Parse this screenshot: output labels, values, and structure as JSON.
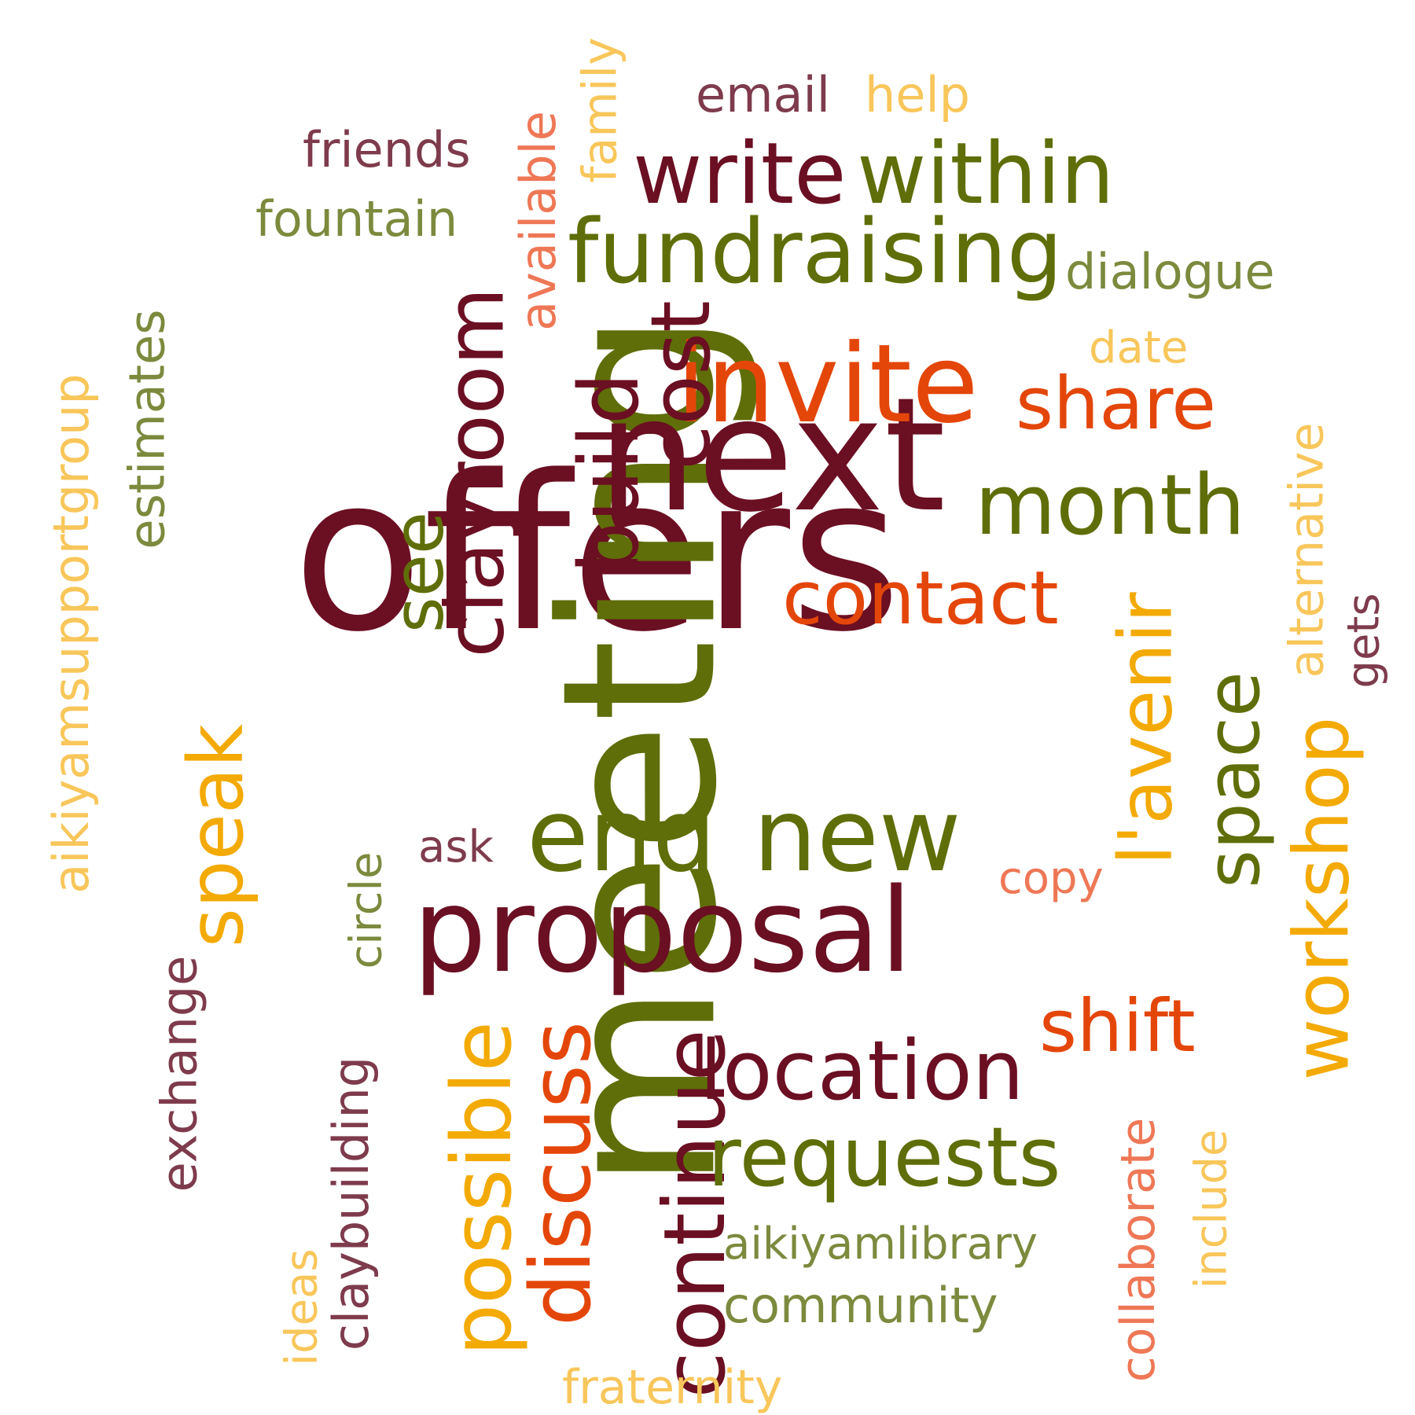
{
  "palette": {
    "maroon": "#6b0f22",
    "olive": "#5f6e08",
    "orange_red": "#e4460a",
    "amber": "#f3aa05",
    "light_amber": "#f8c65a",
    "salmon": "#ee7756",
    "mauve": "#7e3b4c",
    "sage": "#7b8a3d"
  },
  "words": [
    {
      "text": "offers",
      "weight": 1.0,
      "color": "maroon"
    },
    {
      "text": "meeting",
      "weight": 0.98,
      "color": "olive"
    },
    {
      "text": "next",
      "weight": 0.74,
      "color": "maroon"
    },
    {
      "text": "proposal",
      "weight": 0.55,
      "color": "maroon"
    },
    {
      "text": "invite",
      "weight": 0.52,
      "color": "orange_red"
    },
    {
      "text": "fundraising",
      "weight": 0.46,
      "color": "olive"
    },
    {
      "text": "new",
      "weight": 0.45,
      "color": "olive"
    },
    {
      "text": "end",
      "weight": 0.45,
      "color": "olive"
    },
    {
      "text": "within",
      "weight": 0.44,
      "color": "olive"
    },
    {
      "text": "write",
      "weight": 0.44,
      "color": "maroon"
    },
    {
      "text": "clayroom",
      "weight": 0.44,
      "color": "maroon"
    },
    {
      "text": "month",
      "weight": 0.42,
      "color": "olive"
    },
    {
      "text": "discuss",
      "weight": 0.42,
      "color": "orange_red"
    },
    {
      "text": "possible",
      "weight": 0.42,
      "color": "amber"
    },
    {
      "text": "build",
      "weight": 0.42,
      "color": "maroon"
    },
    {
      "text": "cost",
      "weight": 0.42,
      "color": "maroon"
    },
    {
      "text": "continue",
      "weight": 0.42,
      "color": "maroon"
    },
    {
      "text": "location",
      "weight": 0.4,
      "color": "maroon"
    },
    {
      "text": "requests",
      "weight": 0.4,
      "color": "olive"
    },
    {
      "text": "contact",
      "weight": 0.38,
      "color": "orange_red"
    },
    {
      "text": "workshop",
      "weight": 0.38,
      "color": "amber"
    },
    {
      "text": "speak",
      "weight": 0.38,
      "color": "amber"
    },
    {
      "text": "share",
      "weight": 0.36,
      "color": "orange_red"
    },
    {
      "text": "shift",
      "weight": 0.36,
      "color": "orange_red"
    },
    {
      "text": "space",
      "weight": 0.36,
      "color": "olive"
    },
    {
      "text": "l'avenir",
      "weight": 0.36,
      "color": "amber"
    },
    {
      "text": "see",
      "weight": 0.34,
      "color": "olive"
    },
    {
      "text": "dialogue",
      "weight": 0.24,
      "color": "sage"
    },
    {
      "text": "friends",
      "weight": 0.24,
      "color": "mauve"
    },
    {
      "text": "fountain",
      "weight": 0.24,
      "color": "sage"
    },
    {
      "text": "email",
      "weight": 0.24,
      "color": "mauve"
    },
    {
      "text": "help",
      "weight": 0.24,
      "color": "light_amber"
    },
    {
      "text": "available",
      "weight": 0.24,
      "color": "salmon"
    },
    {
      "text": "family",
      "weight": 0.24,
      "color": "light_amber"
    },
    {
      "text": "estimates",
      "weight": 0.24,
      "color": "sage"
    },
    {
      "text": "aikiyamsupportgroup",
      "weight": 0.24,
      "color": "light_amber"
    },
    {
      "text": "date",
      "weight": 0.22,
      "color": "light_amber"
    },
    {
      "text": "alternative",
      "weight": 0.24,
      "color": "light_amber"
    },
    {
      "text": "gets",
      "weight": 0.22,
      "color": "mauve"
    },
    {
      "text": "ask",
      "weight": 0.22,
      "color": "mauve"
    },
    {
      "text": "copy",
      "weight": 0.22,
      "color": "salmon"
    },
    {
      "text": "circle",
      "weight": 0.22,
      "color": "sage"
    },
    {
      "text": "exchange",
      "weight": 0.24,
      "color": "mauve"
    },
    {
      "text": "claybuilding",
      "weight": 0.24,
      "color": "mauve"
    },
    {
      "text": "ideas",
      "weight": 0.22,
      "color": "light_amber"
    },
    {
      "text": "aikiyamlibrary",
      "weight": 0.24,
      "color": "sage"
    },
    {
      "text": "community",
      "weight": 0.24,
      "color": "sage"
    },
    {
      "text": "collaborate",
      "weight": 0.24,
      "color": "salmon"
    },
    {
      "text": "include",
      "weight": 0.22,
      "color": "light_amber"
    },
    {
      "text": "fraternity",
      "weight": 0.24,
      "color": "light_amber"
    }
  ]
}
